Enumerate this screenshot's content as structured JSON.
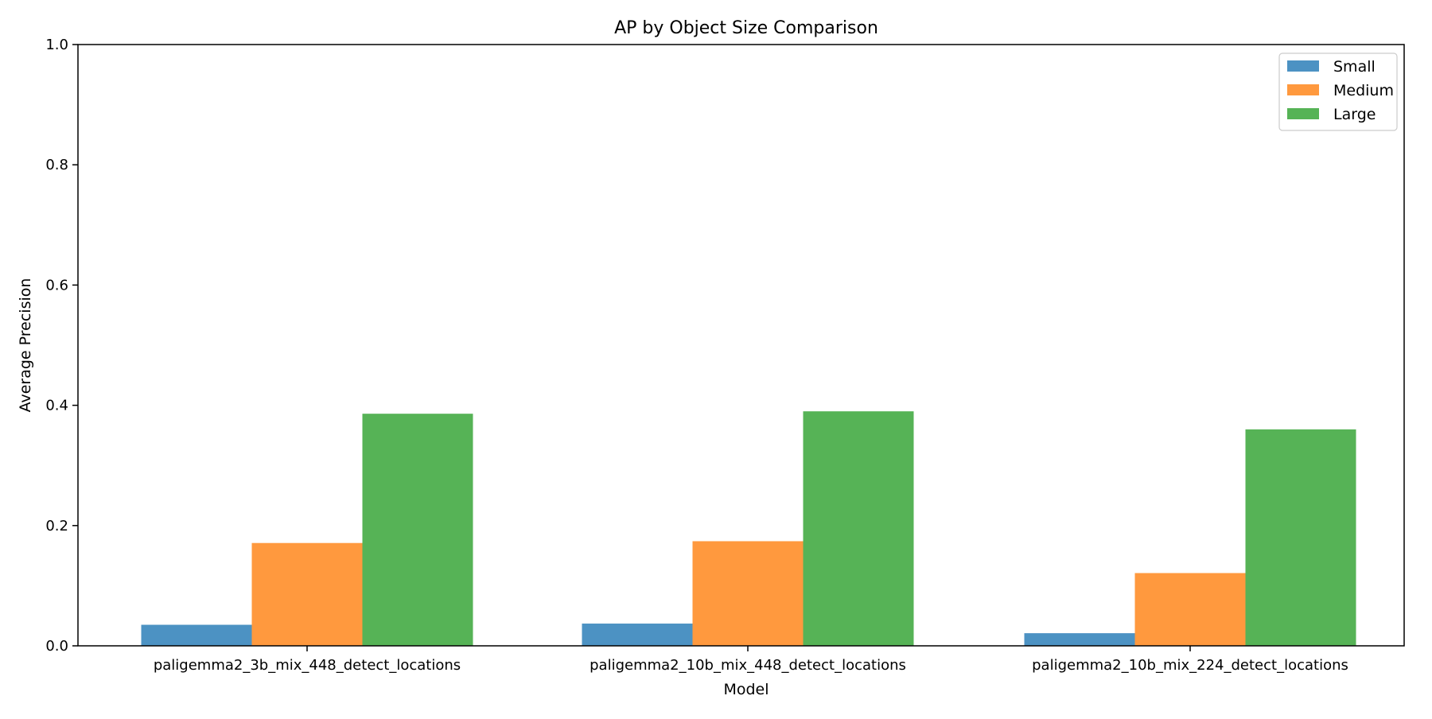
{
  "chart_data": {
    "type": "bar",
    "title": "AP by Object Size Comparison",
    "xlabel": "Model",
    "ylabel": "Average Precision",
    "categories": [
      "paligemma2_3b_mix_448_detect_locations",
      "paligemma2_10b_mix_448_detect_locations",
      "paligemma2_10b_mix_224_detect_locations"
    ],
    "series": [
      {
        "name": "Small",
        "color": "#4c92c3",
        "values": [
          0.035,
          0.037,
          0.021
        ]
      },
      {
        "name": "Medium",
        "color": "#ff993e",
        "values": [
          0.171,
          0.174,
          0.121
        ]
      },
      {
        "name": "Large",
        "color": "#56b356",
        "values": [
          0.386,
          0.39,
          0.36
        ]
      }
    ],
    "ylim": [
      0,
      1.0
    ],
    "yticks": [
      "0.0",
      "0.2",
      "0.4",
      "0.6",
      "0.8",
      "1.0"
    ],
    "ytick_values": [
      0,
      0.2,
      0.4,
      0.6,
      0.8,
      1.0
    ],
    "grid": false,
    "legend_position": "top-right"
  }
}
